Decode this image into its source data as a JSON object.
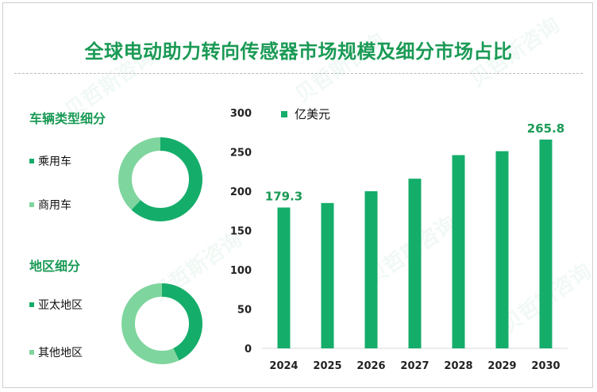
{
  "title": "全球电动助力转向传感器市场规模及细分市场占比",
  "colors": {
    "primary": "#15ad6a",
    "light": "#7fd59e",
    "title": "#1a9a55",
    "axis": "#d9d9d9"
  },
  "vehicle_section": {
    "title": "车辆类型细分",
    "items": [
      {
        "label": "乘用车",
        "color": "#15ad6a"
      },
      {
        "label": "商用车",
        "color": "#7fd59e"
      }
    ]
  },
  "region_section": {
    "title": "地区细分",
    "items": [
      {
        "label": "亚太地区",
        "color": "#15ad6a"
      },
      {
        "label": "其他地区",
        "color": "#7fd59e"
      }
    ]
  },
  "chart_data": [
    {
      "type": "pie",
      "donut": true,
      "categories": [
        "乘用车",
        "商用车"
      ],
      "values": [
        62,
        38
      ]
    },
    {
      "type": "pie",
      "donut": true,
      "categories": [
        "亚太地区",
        "其他地区"
      ],
      "values": [
        43,
        57
      ]
    },
    {
      "type": "bar",
      "categories": [
        "2024",
        "2025",
        "2026",
        "2027",
        "2028",
        "2029",
        "2030"
      ],
      "values": [
        179.3,
        185,
        200,
        216,
        246,
        251,
        265.8
      ],
      "data_labels": [
        {
          "index": 0,
          "text": "179.3"
        },
        {
          "index": 6,
          "text": "265.8"
        }
      ],
      "legend": "亿美元",
      "legend_position": "top-left",
      "yticks": [
        0,
        50,
        100,
        150,
        200,
        250,
        300
      ],
      "ylim": [
        0,
        300
      ],
      "grid": false
    }
  ]
}
